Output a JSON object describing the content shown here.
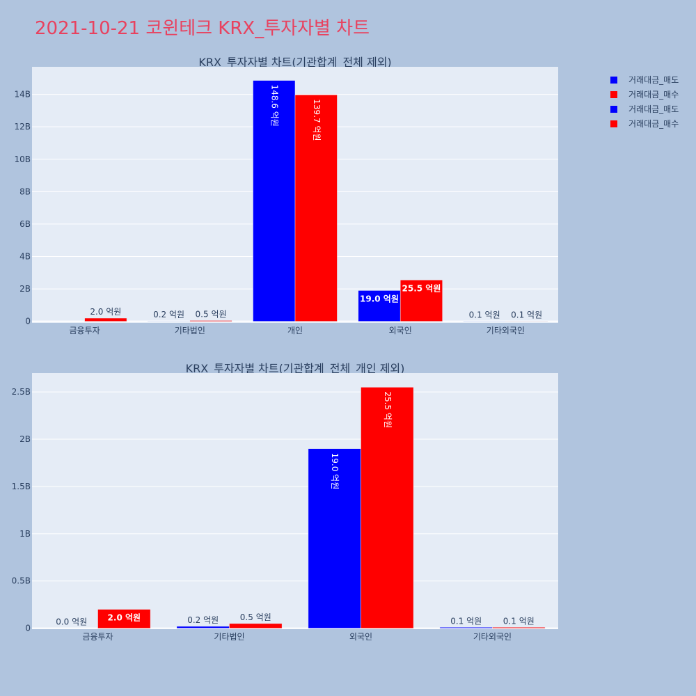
{
  "title": "2021-10-21 코윈테크 KRX_투자자별 차트",
  "legend": [
    {
      "label": "거래대금_매도",
      "color": "#0000ff"
    },
    {
      "label": "거래대금_매수",
      "color": "#ff0000"
    },
    {
      "label": "거래대금_매도",
      "color": "#0000ff"
    },
    {
      "label": "거래대금_매수",
      "color": "#ff0000"
    }
  ],
  "chart_data": [
    {
      "type": "bar",
      "title": "KRX_투자자별 차트(기관합계_전체 제외)",
      "categories": [
        "금융투자",
        "기타법인",
        "개인",
        "외국인",
        "기타외국인"
      ],
      "yticks": [
        {
          "v": 0,
          "t": "0"
        },
        {
          "v": 2000000000.0,
          "t": "2B"
        },
        {
          "v": 4000000000.0,
          "t": "4B"
        },
        {
          "v": 6000000000.0,
          "t": "6B"
        },
        {
          "v": 8000000000.0,
          "t": "8B"
        },
        {
          "v": 10000000000.0,
          "t": "10B"
        },
        {
          "v": 12000000000.0,
          "t": "12B"
        },
        {
          "v": 14000000000.0,
          "t": "14B"
        }
      ],
      "ylim": [
        -100000000,
        15700000000
      ],
      "series": [
        {
          "name": "거래대금_매도",
          "color": "#0000ff",
          "values": [
            0,
            20000000,
            14860000000,
            1900000000,
            10000000
          ],
          "labels": [
            "",
            "0.2 억원",
            "148.6 억원",
            "19.0 억원",
            "0.1 억원"
          ]
        },
        {
          "name": "거래대금_매수",
          "color": "#ff0000",
          "values": [
            200000000,
            50000000,
            13970000000,
            2550000000,
            10000000
          ],
          "labels": [
            "2.0 억원",
            "0.5 억원",
            "139.7 억원",
            "25.5 억원",
            "0.1 억원"
          ]
        }
      ]
    },
    {
      "type": "bar",
      "title": "KRX_투자자별 차트(기관합계_전체_개인 제외)",
      "categories": [
        "금융투자",
        "기타법인",
        "외국인",
        "기타외국인"
      ],
      "yticks": [
        {
          "v": 0,
          "t": "0"
        },
        {
          "v": 500000000.0,
          "t": "0.5B"
        },
        {
          "v": 1000000000.0,
          "t": "1B"
        },
        {
          "v": 1500000000.0,
          "t": "1.5B"
        },
        {
          "v": 2000000000.0,
          "t": "2B"
        },
        {
          "v": 2500000000.0,
          "t": "2.5B"
        }
      ],
      "ylim": [
        -10000000,
        2700000000
      ],
      "series": [
        {
          "name": "거래대금_매도",
          "color": "#0000ff",
          "values": [
            0,
            20000000,
            1900000000,
            10000000
          ],
          "labels": [
            "0.0 억원",
            "0.2 억원",
            "19.0 억원",
            "0.1 억원"
          ]
        },
        {
          "name": "거래대금_매수",
          "color": "#ff0000",
          "values": [
            200000000,
            50000000,
            2550000000,
            10000000
          ],
          "labels": [
            "2.0 억원",
            "0.5 억원",
            "25.5 억원",
            "0.1 억원"
          ]
        }
      ]
    }
  ]
}
